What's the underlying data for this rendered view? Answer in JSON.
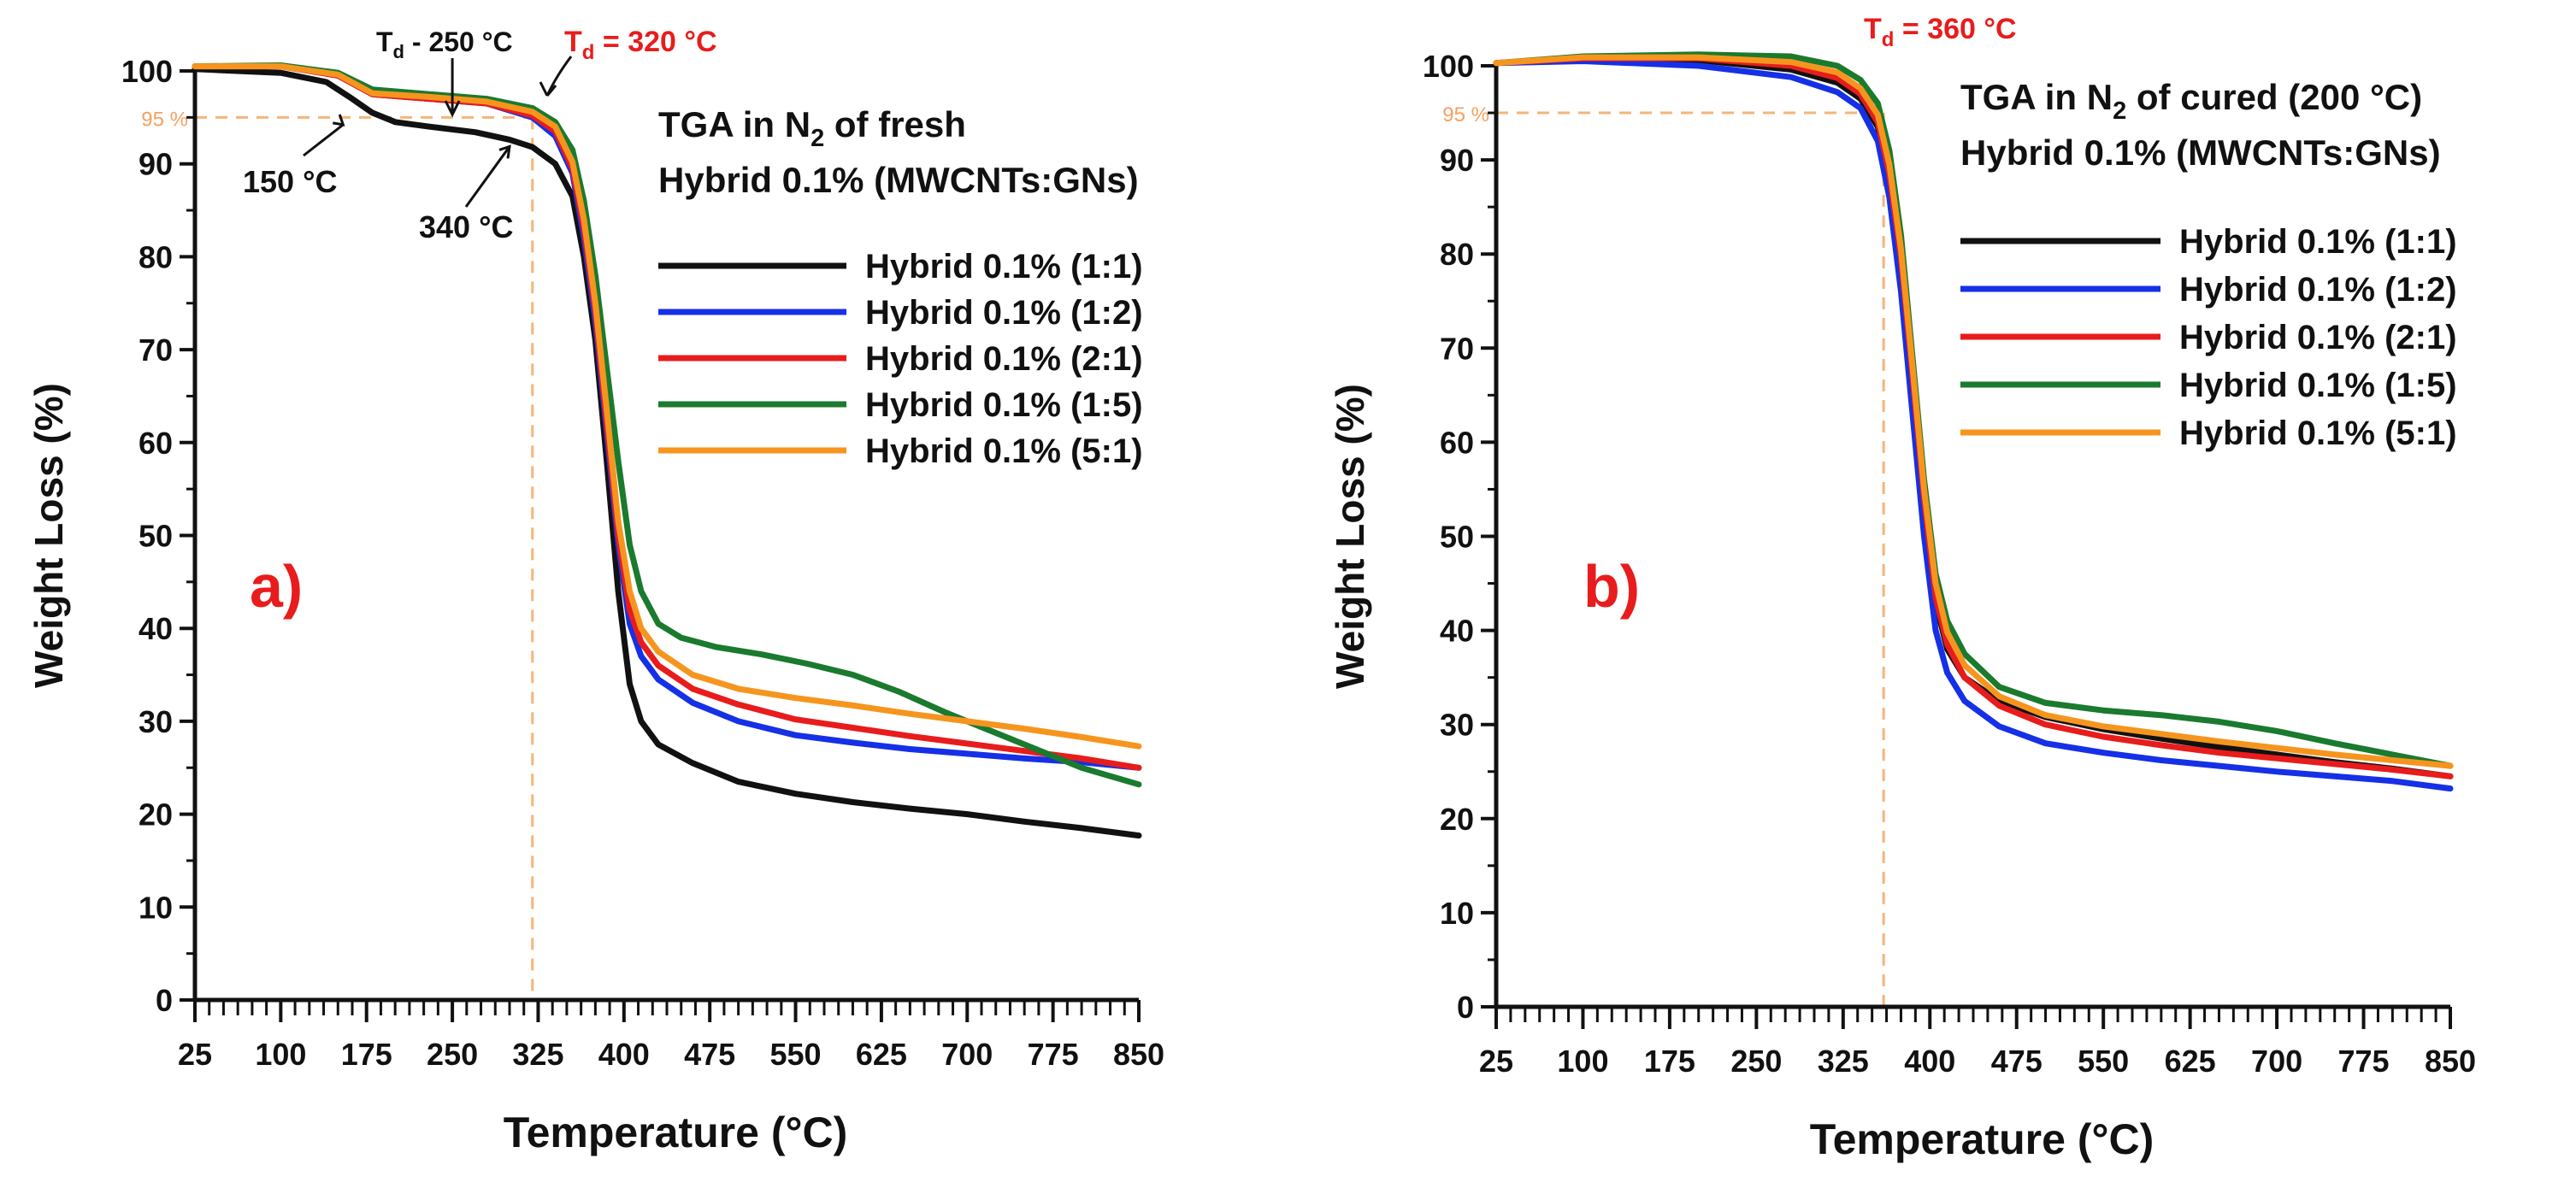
{
  "chart_data": [
    {
      "type": "line",
      "panel_label": "a)",
      "legend_title": [
        "TGA in N",
        "2",
        " of fresh",
        "Hybrid 0.1% (MWCNTs:GNs)"
      ],
      "xlabel": "Temperature (°C)",
      "ylabel": "Weight Loss (%)",
      "xlim": [
        25,
        850
      ],
      "ylim": [
        0,
        100
      ],
      "x_ticks": [
        25,
        100,
        175,
        250,
        325,
        400,
        475,
        550,
        625,
        700,
        775,
        850
      ],
      "y_ticks": [
        0,
        10,
        20,
        30,
        40,
        50,
        60,
        70,
        80,
        90,
        100
      ],
      "reference_lines": {
        "y": 95,
        "y_label": "95 %",
        "x": 320
      },
      "annotations": {
        "td_main": {
          "parts": [
            "T",
            "d",
            " = 320 °C"
          ],
          "x": 320
        },
        "td_secondary": {
          "parts": [
            "T",
            "d",
            " - 250 °C"
          ],
          "x": 250
        },
        "point_150": {
          "text": "150 °C",
          "x": 150,
          "y": 95.5
        },
        "point_340": {
          "text": "340 °C",
          "x": 300,
          "y": 92.6
        }
      },
      "series": [
        {
          "name": "Hybrid 0.1% (1:1)",
          "color": "#111111",
          "x": [
            25,
            100,
            140,
            160,
            180,
            200,
            230,
            270,
            300,
            320,
            340,
            355,
            365,
            375,
            385,
            395,
            405,
            415,
            430,
            460,
            500,
            550,
            600,
            650,
            700,
            750,
            800,
            850
          ],
          "y": [
            100.2,
            99.8,
            98.8,
            97.2,
            95.5,
            94.5,
            94.0,
            93.4,
            92.6,
            91.8,
            90.0,
            86.5,
            80.0,
            71.0,
            58.0,
            44.0,
            34.0,
            30.0,
            27.5,
            25.5,
            23.5,
            22.2,
            21.3,
            20.6,
            20.0,
            19.2,
            18.5,
            17.7
          ]
        },
        {
          "name": "Hybrid 0.1% (1:2)",
          "color": "#1530e6",
          "x": [
            25,
            100,
            150,
            180,
            230,
            280,
            320,
            340,
            355,
            365,
            375,
            385,
            395,
            405,
            415,
            430,
            460,
            500,
            550,
            600,
            650,
            700,
            750,
            800,
            850
          ],
          "y": [
            100.5,
            100.5,
            99.5,
            97.5,
            97.0,
            96.5,
            95.0,
            93.0,
            89.0,
            82.0,
            73.0,
            61.0,
            49.0,
            40.5,
            37.0,
            34.5,
            32.0,
            30.0,
            28.5,
            27.7,
            27.0,
            26.5,
            26.0,
            25.6,
            25.0
          ]
        },
        {
          "name": "Hybrid 0.1% (2:1)",
          "color": "#e81c1c",
          "x": [
            25,
            100,
            150,
            180,
            230,
            280,
            320,
            340,
            355,
            365,
            375,
            385,
            395,
            405,
            415,
            430,
            460,
            500,
            550,
            600,
            650,
            700,
            750,
            800,
            850
          ],
          "y": [
            100.5,
            100.5,
            99.5,
            97.5,
            97.0,
            96.5,
            95.2,
            93.5,
            89.5,
            83.0,
            74.0,
            62.0,
            50.0,
            42.0,
            38.5,
            36.0,
            33.5,
            31.8,
            30.2,
            29.3,
            28.4,
            27.6,
            26.8,
            26.0,
            25.0
          ]
        },
        {
          "name": "Hybrid 0.1% (1:5)",
          "color": "#1a7a2e",
          "x": [
            25,
            100,
            150,
            180,
            230,
            280,
            320,
            340,
            355,
            365,
            375,
            385,
            395,
            405,
            415,
            430,
            450,
            480,
            520,
            560,
            600,
            640,
            680,
            720,
            760,
            800,
            850
          ],
          "y": [
            100.5,
            100.6,
            99.8,
            98.0,
            97.5,
            97.0,
            96.0,
            94.5,
            91.5,
            86.0,
            78.0,
            68.0,
            58.0,
            49.0,
            44.0,
            40.5,
            39.0,
            38.0,
            37.2,
            36.2,
            35.0,
            33.2,
            31.0,
            29.0,
            27.0,
            25.0,
            23.2
          ]
        },
        {
          "name": "Hybrid 0.1% (5:1)",
          "color": "#f6951e",
          "x": [
            25,
            100,
            150,
            180,
            230,
            280,
            320,
            340,
            355,
            365,
            375,
            385,
            395,
            405,
            415,
            430,
            460,
            500,
            550,
            600,
            650,
            700,
            750,
            800,
            850
          ],
          "y": [
            100.5,
            100.5,
            99.6,
            97.6,
            97.2,
            96.7,
            95.6,
            94.0,
            90.2,
            84.0,
            75.0,
            63.5,
            51.5,
            44.0,
            40.0,
            37.5,
            35.0,
            33.5,
            32.5,
            31.7,
            30.8,
            30.0,
            29.2,
            28.3,
            27.3
          ]
        }
      ]
    },
    {
      "type": "line",
      "panel_label": "b)",
      "legend_title": [
        "TGA in N",
        "2",
        " of cured (200 °C)",
        "Hybrid 0.1% (MWCNTs:GNs)"
      ],
      "xlabel": "Temperature (°C)",
      "ylabel": "Weight Loss (%)",
      "xlim": [
        25,
        850
      ],
      "ylim": [
        0,
        100
      ],
      "x_ticks": [
        25,
        100,
        175,
        250,
        325,
        400,
        475,
        550,
        625,
        700,
        775,
        850
      ],
      "y_ticks": [
        0,
        10,
        20,
        30,
        40,
        50,
        60,
        70,
        80,
        90,
        100
      ],
      "reference_lines": {
        "y": 95,
        "y_label": "95 %",
        "x": 360
      },
      "annotations": {
        "td_main": {
          "parts": [
            "T",
            "d",
            " = 360 °C"
          ],
          "x": 360
        }
      },
      "series": [
        {
          "name": "Hybrid 0.1% (1:1)",
          "color": "#111111",
          "x": [
            25,
            100,
            200,
            280,
            320,
            340,
            355,
            365,
            375,
            385,
            395,
            405,
            415,
            430,
            460,
            500,
            550,
            600,
            650,
            700,
            750,
            800,
            850
          ],
          "y": [
            100.3,
            100.8,
            100.6,
            99.6,
            98.2,
            96.5,
            93.5,
            88.0,
            79.0,
            66.0,
            53.0,
            43.0,
            38.0,
            35.0,
            32.5,
            30.8,
            29.5,
            28.5,
            27.6,
            26.8,
            26.0,
            25.3,
            24.5
          ]
        },
        {
          "name": "Hybrid 0.1% (1:2)",
          "color": "#1530e6",
          "x": [
            25,
            100,
            200,
            280,
            320,
            340,
            355,
            365,
            375,
            385,
            395,
            405,
            415,
            430,
            460,
            500,
            550,
            600,
            650,
            700,
            750,
            800,
            850
          ],
          "y": [
            100.3,
            100.5,
            100.0,
            98.8,
            97.2,
            95.5,
            92.0,
            86.0,
            76.0,
            63.0,
            50.0,
            40.0,
            35.5,
            32.5,
            29.8,
            28.0,
            27.0,
            26.2,
            25.6,
            25.0,
            24.5,
            24.0,
            23.2
          ]
        },
        {
          "name": "Hybrid 0.1% (2:1)",
          "color": "#e81c1c",
          "x": [
            25,
            100,
            200,
            280,
            320,
            340,
            355,
            365,
            375,
            385,
            395,
            405,
            415,
            430,
            460,
            500,
            550,
            600,
            650,
            700,
            750,
            800,
            850
          ],
          "y": [
            100.3,
            100.8,
            100.8,
            100.0,
            98.7,
            97.0,
            94.0,
            88.5,
            79.5,
            67.0,
            54.0,
            43.5,
            38.5,
            35.0,
            32.0,
            30.0,
            28.7,
            27.8,
            27.0,
            26.4,
            25.8,
            25.2,
            24.5
          ]
        },
        {
          "name": "Hybrid 0.1% (1:5)",
          "color": "#1a7a2e",
          "x": [
            25,
            100,
            200,
            280,
            320,
            340,
            355,
            365,
            375,
            385,
            395,
            405,
            415,
            430,
            460,
            500,
            550,
            600,
            650,
            700,
            750,
            800,
            850
          ],
          "y": [
            100.3,
            101.0,
            101.2,
            101.0,
            100.0,
            98.5,
            96.0,
            91.0,
            82.0,
            69.0,
            56.0,
            46.0,
            41.0,
            37.5,
            34.0,
            32.3,
            31.5,
            31.0,
            30.3,
            29.3,
            28.0,
            26.8,
            25.6
          ]
        },
        {
          "name": "Hybrid 0.1% (5:1)",
          "color": "#f6951e",
          "x": [
            25,
            100,
            200,
            280,
            320,
            340,
            355,
            365,
            375,
            385,
            395,
            405,
            415,
            430,
            460,
            500,
            550,
            600,
            650,
            700,
            750,
            800,
            850
          ],
          "y": [
            100.3,
            100.9,
            100.9,
            100.4,
            99.3,
            97.6,
            94.8,
            89.5,
            80.5,
            68.0,
            55.0,
            45.0,
            39.8,
            36.3,
            33.0,
            31.0,
            29.8,
            29.0,
            28.2,
            27.5,
            26.8,
            26.2,
            25.6
          ]
        }
      ]
    }
  ]
}
